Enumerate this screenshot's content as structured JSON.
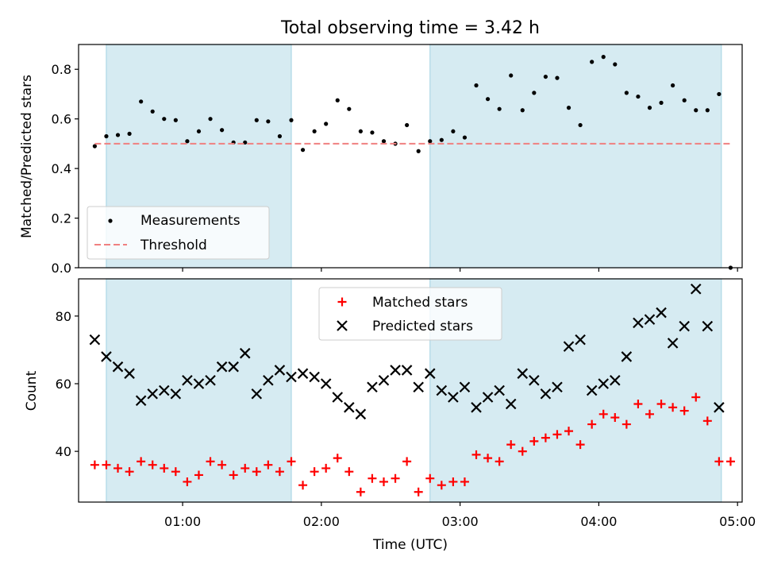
{
  "chart_data": [
    {
      "type": "scatter",
      "title": "Total observing time = 3.42 h",
      "xlabel": "",
      "ylabel": "Matched/Predicted stars",
      "xlim": [
        "00:15",
        "05:02"
      ],
      "ylim": [
        0,
        0.9
      ],
      "yticks": [
        "0.0",
        "0.2",
        "0.4",
        "0.6",
        "0.8"
      ],
      "grid": false,
      "legend_position": "lower-left",
      "shaded_intervals": [
        [
          "00:27",
          "01:47"
        ],
        [
          "02:47",
          "04:53"
        ]
      ],
      "shade_color": "#add8e6",
      "series": [
        {
          "name": "Measurements",
          "marker": "dot",
          "color": "#000000",
          "x": [
            "00:22",
            "00:27",
            "00:32",
            "00:37",
            "00:42",
            "00:47",
            "00:52",
            "00:57",
            "01:02",
            "01:07",
            "01:12",
            "01:17",
            "01:22",
            "01:27",
            "01:32",
            "01:37",
            "01:42",
            "01:47",
            "01:52",
            "01:57",
            "02:02",
            "02:07",
            "02:12",
            "02:17",
            "02:22",
            "02:27",
            "02:32",
            "02:37",
            "02:42",
            "02:47",
            "02:52",
            "02:57",
            "03:02",
            "03:07",
            "03:12",
            "03:17",
            "03:22",
            "03:27",
            "03:32",
            "03:37",
            "03:42",
            "03:47",
            "03:52",
            "03:57",
            "04:02",
            "04:07",
            "04:12",
            "04:17",
            "04:22",
            "04:27",
            "04:32",
            "04:37",
            "04:42",
            "04:47",
            "04:52",
            "04:57"
          ],
          "y": [
            0.49,
            0.53,
            0.535,
            0.54,
            0.67,
            0.63,
            0.6,
            0.595,
            0.51,
            0.55,
            0.6,
            0.555,
            0.505,
            0.505,
            0.595,
            0.59,
            0.53,
            0.595,
            0.475,
            0.55,
            0.58,
            0.675,
            0.64,
            0.55,
            0.545,
            0.51,
            0.5,
            0.575,
            0.47,
            0.51,
            0.515,
            0.55,
            0.525,
            0.735,
            0.68,
            0.64,
            0.775,
            0.635,
            0.705,
            0.77,
            0.765,
            0.645,
            0.575,
            0.83,
            0.85,
            0.82,
            0.705,
            0.69,
            0.645,
            0.665,
            0.735,
            0.675,
            0.635,
            0.635,
            0.7,
            0.0
          ]
        },
        {
          "name": "Threshold",
          "style": "dashed",
          "color": "#f08080",
          "x": [
            "00:22",
            "04:57"
          ],
          "y": [
            0.5,
            0.5
          ]
        }
      ]
    },
    {
      "type": "scatter",
      "xlabel": "Time (UTC)",
      "ylabel": "Count",
      "xlim": [
        "00:15",
        "05:02"
      ],
      "ylim": [
        25,
        91
      ],
      "yticks": [
        "40",
        "60",
        "80"
      ],
      "xticks": [
        "01:00",
        "02:00",
        "03:00",
        "04:00",
        "05:00"
      ],
      "grid": false,
      "legend_position": "top-center",
      "shaded_intervals": [
        [
          "00:27",
          "01:47"
        ],
        [
          "02:47",
          "04:53"
        ]
      ],
      "shade_color": "#add8e6",
      "series": [
        {
          "name": "Matched stars",
          "marker": "plus",
          "color": "#ff0000",
          "x": [
            "00:22",
            "00:27",
            "00:32",
            "00:37",
            "00:42",
            "00:47",
            "00:52",
            "00:57",
            "01:02",
            "01:07",
            "01:12",
            "01:17",
            "01:22",
            "01:27",
            "01:32",
            "01:37",
            "01:42",
            "01:47",
            "01:52",
            "01:57",
            "02:02",
            "02:07",
            "02:12",
            "02:17",
            "02:22",
            "02:27",
            "02:32",
            "02:37",
            "02:42",
            "02:47",
            "02:52",
            "02:57",
            "03:02",
            "03:07",
            "03:12",
            "03:17",
            "03:22",
            "03:27",
            "03:32",
            "03:37",
            "03:42",
            "03:47",
            "03:52",
            "03:57",
            "04:02",
            "04:07",
            "04:12",
            "04:17",
            "04:22",
            "04:27",
            "04:32",
            "04:37",
            "04:42",
            "04:47",
            "04:52",
            "04:57"
          ],
          "y": [
            36,
            36,
            35,
            34,
            37,
            36,
            35,
            34,
            31,
            33,
            37,
            36,
            33,
            35,
            34,
            36,
            34,
            37,
            30,
            34,
            35,
            38,
            34,
            28,
            32,
            31,
            32,
            37,
            28,
            32,
            30,
            31,
            31,
            39,
            38,
            37,
            42,
            40,
            43,
            44,
            45,
            46,
            42,
            48,
            51,
            50,
            48,
            54,
            51,
            54,
            53,
            52,
            56,
            49,
            37,
            37
          ]
        },
        {
          "name": "Predicted stars",
          "marker": "x",
          "color": "#000000",
          "x": [
            "00:22",
            "00:27",
            "00:32",
            "00:37",
            "00:42",
            "00:47",
            "00:52",
            "00:57",
            "01:02",
            "01:07",
            "01:12",
            "01:17",
            "01:22",
            "01:27",
            "01:32",
            "01:37",
            "01:42",
            "01:47",
            "01:52",
            "01:57",
            "02:02",
            "02:07",
            "02:12",
            "02:17",
            "02:22",
            "02:27",
            "02:32",
            "02:37",
            "02:42",
            "02:47",
            "02:52",
            "02:57",
            "03:02",
            "03:07",
            "03:12",
            "03:17",
            "03:22",
            "03:27",
            "03:32",
            "03:37",
            "03:42",
            "03:47",
            "03:52",
            "03:57",
            "04:02",
            "04:07",
            "04:12",
            "04:17",
            "04:22",
            "04:27",
            "04:32",
            "04:37",
            "04:42",
            "04:47",
            "04:52"
          ],
          "y": [
            73,
            68,
            65,
            63,
            55,
            57,
            58,
            57,
            61,
            60,
            61,
            65,
            65,
            69,
            57,
            61,
            64,
            62,
            63,
            62,
            60,
            56,
            53,
            51,
            59,
            61,
            64,
            64,
            59,
            63,
            58,
            56,
            59,
            53,
            56,
            58,
            54,
            63,
            61,
            57,
            59,
            71,
            73,
            58,
            60,
            61,
            68,
            78,
            79,
            81,
            72,
            77,
            88,
            77,
            53
          ]
        }
      ]
    }
  ]
}
